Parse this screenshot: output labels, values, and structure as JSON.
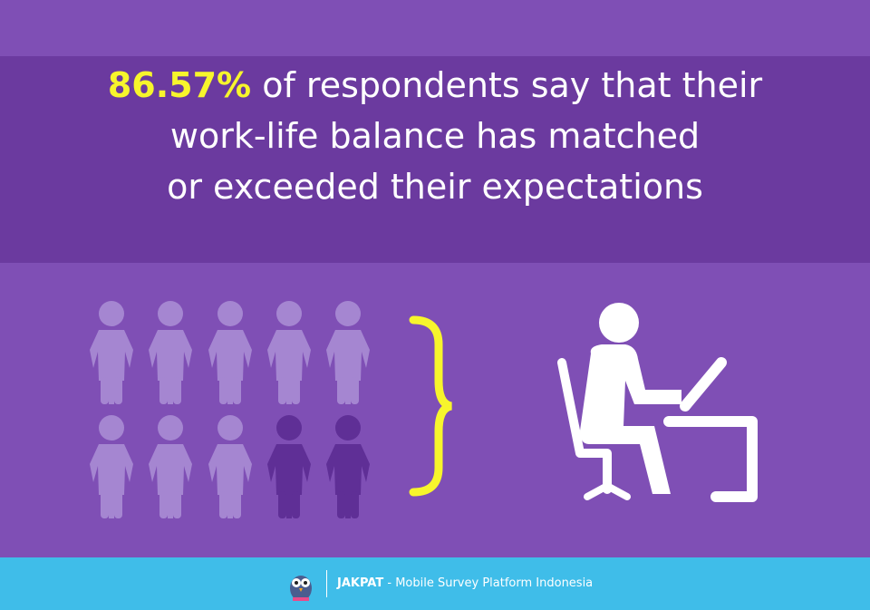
{
  "headline": {
    "highlight": "86.57%",
    "lines": [
      "of respondents say that their",
      "work-life balance has matched",
      "or exceeded their expectations"
    ]
  },
  "footer": {
    "brand": "JAKPAT",
    "tagline": "- Mobile Survey Platform Indonesia"
  }
}
